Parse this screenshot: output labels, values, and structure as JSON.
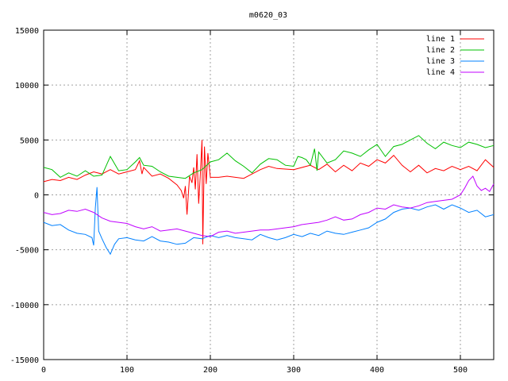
{
  "chart_data": {
    "type": "line",
    "title": "m0620_03",
    "xlabel": "",
    "ylabel": "",
    "xlim": [
      0,
      540
    ],
    "ylim": [
      -15000,
      15000
    ],
    "xticks": [
      0,
      100,
      200,
      300,
      400,
      500
    ],
    "yticks": [
      -15000,
      -10000,
      -5000,
      0,
      5000,
      10000,
      15000
    ],
    "grid": true,
    "legend_position": "top-right",
    "series": [
      {
        "name": "line 1",
        "color": "#ff0000",
        "points": [
          [
            0,
            1200
          ],
          [
            10,
            1400
          ],
          [
            20,
            1300
          ],
          [
            30,
            1600
          ],
          [
            40,
            1400
          ],
          [
            50,
            1800
          ],
          [
            60,
            2100
          ],
          [
            70,
            1900
          ],
          [
            80,
            2300
          ],
          [
            90,
            1900
          ],
          [
            100,
            2100
          ],
          [
            110,
            2300
          ],
          [
            115,
            3100
          ],
          [
            118,
            1900
          ],
          [
            120,
            2500
          ],
          [
            130,
            1700
          ],
          [
            140,
            1900
          ],
          [
            150,
            1500
          ],
          [
            160,
            900
          ],
          [
            165,
            400
          ],
          [
            168,
            -300
          ],
          [
            170,
            800
          ],
          [
            172,
            -1800
          ],
          [
            175,
            1700
          ],
          [
            178,
            1100
          ],
          [
            180,
            2500
          ],
          [
            182,
            500
          ],
          [
            184,
            3700
          ],
          [
            186,
            -800
          ],
          [
            188,
            1900
          ],
          [
            190,
            5000
          ],
          [
            191,
            -4500
          ],
          [
            193,
            4400
          ],
          [
            195,
            1000
          ],
          [
            197,
            3800
          ],
          [
            200,
            1600
          ],
          [
            210,
            1600
          ],
          [
            220,
            1700
          ],
          [
            240,
            1500
          ],
          [
            250,
            1900
          ],
          [
            260,
            2300
          ],
          [
            270,
            2600
          ],
          [
            280,
            2400
          ],
          [
            300,
            2300
          ],
          [
            320,
            2700
          ],
          [
            330,
            2300
          ],
          [
            340,
            2800
          ],
          [
            350,
            2100
          ],
          [
            360,
            2700
          ],
          [
            370,
            2200
          ],
          [
            380,
            2900
          ],
          [
            390,
            2600
          ],
          [
            400,
            3200
          ],
          [
            410,
            2900
          ],
          [
            420,
            3600
          ],
          [
            430,
            2700
          ],
          [
            440,
            2100
          ],
          [
            450,
            2700
          ],
          [
            460,
            2000
          ],
          [
            470,
            2400
          ],
          [
            480,
            2200
          ],
          [
            490,
            2600
          ],
          [
            500,
            2300
          ],
          [
            510,
            2600
          ],
          [
            520,
            2200
          ],
          [
            530,
            3200
          ],
          [
            540,
            2500
          ]
        ]
      },
      {
        "name": "line 2",
        "color": "#00c000",
        "points": [
          [
            0,
            2500
          ],
          [
            10,
            2300
          ],
          [
            20,
            1600
          ],
          [
            30,
            2000
          ],
          [
            40,
            1700
          ],
          [
            50,
            2200
          ],
          [
            60,
            1700
          ],
          [
            70,
            1800
          ],
          [
            80,
            3500
          ],
          [
            90,
            2200
          ],
          [
            100,
            2300
          ],
          [
            110,
            3000
          ],
          [
            115,
            3400
          ],
          [
            120,
            2700
          ],
          [
            130,
            2600
          ],
          [
            140,
            2100
          ],
          [
            150,
            1700
          ],
          [
            160,
            1600
          ],
          [
            170,
            1500
          ],
          [
            180,
            2000
          ],
          [
            190,
            2300
          ],
          [
            200,
            3000
          ],
          [
            210,
            3200
          ],
          [
            220,
            3800
          ],
          [
            230,
            3100
          ],
          [
            240,
            2600
          ],
          [
            250,
            2000
          ],
          [
            260,
            2800
          ],
          [
            270,
            3300
          ],
          [
            280,
            3200
          ],
          [
            290,
            2700
          ],
          [
            300,
            2600
          ],
          [
            305,
            3500
          ],
          [
            310,
            3400
          ],
          [
            315,
            3200
          ],
          [
            320,
            2700
          ],
          [
            325,
            4200
          ],
          [
            328,
            2200
          ],
          [
            330,
            3900
          ],
          [
            340,
            2900
          ],
          [
            350,
            3200
          ],
          [
            360,
            4000
          ],
          [
            370,
            3800
          ],
          [
            380,
            3500
          ],
          [
            390,
            4100
          ],
          [
            400,
            4600
          ],
          [
            410,
            3500
          ],
          [
            420,
            4400
          ],
          [
            430,
            4600
          ],
          [
            440,
            5000
          ],
          [
            450,
            5400
          ],
          [
            460,
            4700
          ],
          [
            470,
            4200
          ],
          [
            480,
            4800
          ],
          [
            490,
            4500
          ],
          [
            500,
            4300
          ],
          [
            510,
            4800
          ],
          [
            520,
            4600
          ],
          [
            530,
            4300
          ],
          [
            540,
            4500
          ]
        ]
      },
      {
        "name": "line 3",
        "color": "#0080ff",
        "points": [
          [
            0,
            -2500
          ],
          [
            10,
            -2800
          ],
          [
            20,
            -2700
          ],
          [
            30,
            -3200
          ],
          [
            40,
            -3500
          ],
          [
            50,
            -3600
          ],
          [
            58,
            -3900
          ],
          [
            60,
            -4600
          ],
          [
            62,
            -1200
          ],
          [
            64,
            700
          ],
          [
            66,
            -3300
          ],
          [
            70,
            -4000
          ],
          [
            75,
            -4800
          ],
          [
            80,
            -5400
          ],
          [
            85,
            -4500
          ],
          [
            90,
            -4000
          ],
          [
            100,
            -3900
          ],
          [
            110,
            -4100
          ],
          [
            120,
            -4200
          ],
          [
            130,
            -3800
          ],
          [
            140,
            -4200
          ],
          [
            150,
            -4300
          ],
          [
            160,
            -4500
          ],
          [
            170,
            -4400
          ],
          [
            180,
            -3900
          ],
          [
            190,
            -4000
          ],
          [
            200,
            -3700
          ],
          [
            210,
            -3900
          ],
          [
            220,
            -3700
          ],
          [
            230,
            -3900
          ],
          [
            240,
            -4000
          ],
          [
            250,
            -4100
          ],
          [
            260,
            -3600
          ],
          [
            270,
            -3900
          ],
          [
            280,
            -4100
          ],
          [
            290,
            -3900
          ],
          [
            300,
            -3600
          ],
          [
            310,
            -3800
          ],
          [
            320,
            -3500
          ],
          [
            330,
            -3700
          ],
          [
            340,
            -3300
          ],
          [
            350,
            -3500
          ],
          [
            360,
            -3600
          ],
          [
            370,
            -3400
          ],
          [
            380,
            -3200
          ],
          [
            390,
            -3000
          ],
          [
            400,
            -2500
          ],
          [
            410,
            -2200
          ],
          [
            420,
            -1600
          ],
          [
            430,
            -1300
          ],
          [
            440,
            -1200
          ],
          [
            450,
            -1400
          ],
          [
            460,
            -1100
          ],
          [
            470,
            -900
          ],
          [
            480,
            -1300
          ],
          [
            490,
            -900
          ],
          [
            500,
            -1200
          ],
          [
            510,
            -1600
          ],
          [
            520,
            -1400
          ],
          [
            530,
            -2000
          ],
          [
            540,
            -1800
          ]
        ]
      },
      {
        "name": "line 4",
        "color": "#c000ff",
        "points": [
          [
            0,
            -1600
          ],
          [
            10,
            -1800
          ],
          [
            20,
            -1700
          ],
          [
            30,
            -1400
          ],
          [
            40,
            -1500
          ],
          [
            50,
            -1300
          ],
          [
            60,
            -1600
          ],
          [
            70,
            -2100
          ],
          [
            80,
            -2400
          ],
          [
            90,
            -2500
          ],
          [
            100,
            -2600
          ],
          [
            110,
            -2900
          ],
          [
            120,
            -3100
          ],
          [
            130,
            -2900
          ],
          [
            140,
            -3300
          ],
          [
            150,
            -3200
          ],
          [
            160,
            -3100
          ],
          [
            170,
            -3300
          ],
          [
            180,
            -3500
          ],
          [
            190,
            -3700
          ],
          [
            200,
            -3800
          ],
          [
            210,
            -3400
          ],
          [
            220,
            -3300
          ],
          [
            230,
            -3500
          ],
          [
            240,
            -3400
          ],
          [
            250,
            -3300
          ],
          [
            260,
            -3200
          ],
          [
            270,
            -3200
          ],
          [
            280,
            -3100
          ],
          [
            290,
            -3000
          ],
          [
            300,
            -2900
          ],
          [
            310,
            -2700
          ],
          [
            320,
            -2600
          ],
          [
            330,
            -2500
          ],
          [
            340,
            -2300
          ],
          [
            350,
            -2000
          ],
          [
            360,
            -2300
          ],
          [
            370,
            -2200
          ],
          [
            380,
            -1800
          ],
          [
            390,
            -1600
          ],
          [
            400,
            -1200
          ],
          [
            410,
            -1300
          ],
          [
            420,
            -900
          ],
          [
            430,
            -1100
          ],
          [
            440,
            -1200
          ],
          [
            450,
            -1000
          ],
          [
            460,
            -700
          ],
          [
            470,
            -600
          ],
          [
            480,
            -500
          ],
          [
            490,
            -400
          ],
          [
            500,
            0
          ],
          [
            505,
            600
          ],
          [
            510,
            1300
          ],
          [
            515,
            1700
          ],
          [
            520,
            800
          ],
          [
            525,
            400
          ],
          [
            530,
            600
          ],
          [
            535,
            300
          ],
          [
            540,
            1000
          ]
        ]
      }
    ]
  }
}
